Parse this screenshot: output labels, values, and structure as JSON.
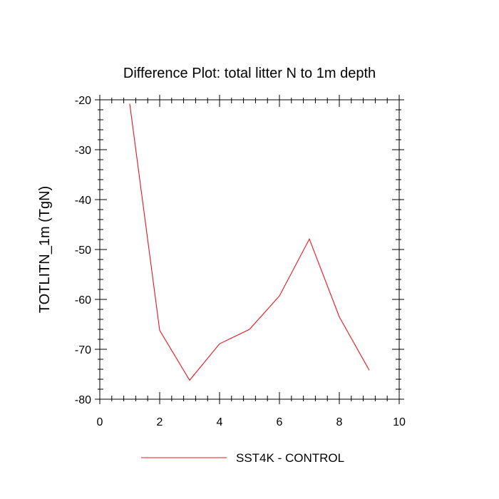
{
  "chart_data": {
    "type": "line",
    "title": "Difference Plot: total litter N to 1m depth",
    "xlabel": "",
    "ylabel": "TOTLITN_1m  (TgN)",
    "xlim": [
      0,
      10
    ],
    "ylim": [
      -80,
      -20
    ],
    "x_ticks": [
      0,
      2,
      4,
      6,
      8,
      10
    ],
    "y_ticks": [
      -80,
      -70,
      -60,
      -50,
      -40,
      -30,
      -20
    ],
    "grid": false,
    "legend_position": "bottom-center",
    "series": [
      {
        "name": "SST4K - CONTROL",
        "color": "#e8141e",
        "x": [
          1,
          2,
          3,
          4,
          5,
          6,
          7,
          8,
          9
        ],
        "y": [
          -20.8,
          -66.2,
          -76.2,
          -68.9,
          -66.0,
          -59.3,
          -47.9,
          -63.5,
          -74.2
        ]
      }
    ]
  }
}
